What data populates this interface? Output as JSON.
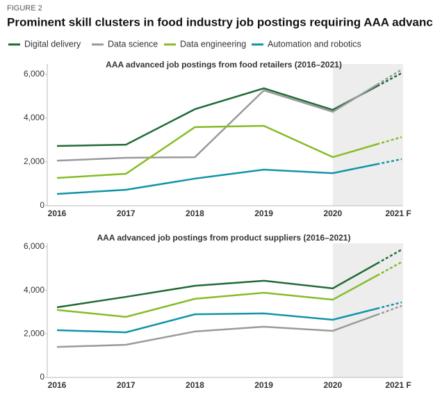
{
  "figure_label": "FIGURE 2",
  "title": "Prominent skill clusters in food industry job postings requiring AAA advanced skills",
  "chart_data": [
    {
      "type": "line",
      "title": "AAA advanced job postings from food retailers (2016–2021)",
      "categories": [
        "2016",
        "2017",
        "2018",
        "2019",
        "2020",
        "2021 F"
      ],
      "series": [
        {
          "name": "Digital delivery",
          "color": "#1e6b34",
          "values": [
            2730,
            2790,
            4410,
            5365,
            4380,
            6060
          ]
        },
        {
          "name": "Data science",
          "color": "#9a9a9a",
          "values": [
            2060,
            2190,
            2220,
            5270,
            4290,
            6220
          ]
        },
        {
          "name": "Data engineering",
          "color": "#86bc25",
          "values": [
            1270,
            1460,
            3590,
            3650,
            2220,
            3140
          ]
        },
        {
          "name": "Automation and robotics",
          "color": "#1193a9",
          "values": [
            540,
            730,
            1240,
            1650,
            1490,
            2130
          ]
        }
      ],
      "ylim": [
        0,
        6000
      ],
      "yticks": [
        0,
        {
          "value": 2000,
          "label": "2,000"
        },
        {
          "value": 4000,
          "label": "4,000"
        },
        {
          "value": 6000,
          "label": "6,000"
        }
      ]
    },
    {
      "type": "line",
      "title": "AAA advanced job postings from product suppliers (2016–2021)",
      "categories": [
        "2016",
        "2017",
        "2018",
        "2019",
        "2020",
        "2021 F"
      ],
      "series": [
        {
          "name": "Digital delivery",
          "color": "#1e6b34",
          "values": [
            3220,
            3700,
            4210,
            4440,
            4090,
            5870
          ]
        },
        {
          "name": "Data science",
          "color": "#9a9a9a",
          "values": [
            1400,
            1500,
            2110,
            2330,
            2140,
            3290
          ]
        },
        {
          "name": "Data engineering",
          "color": "#86bc25",
          "values": [
            3100,
            2780,
            3610,
            3890,
            3570,
            5300
          ]
        },
        {
          "name": "Automation and robotics",
          "color": "#1193a9",
          "values": [
            2170,
            2070,
            2900,
            2940,
            2650,
            3450
          ]
        }
      ],
      "ylim": [
        0,
        6000
      ],
      "yticks": [
        0,
        {
          "value": 2000,
          "label": "2,000"
        },
        {
          "value": 4000,
          "label": "4,000"
        },
        {
          "value": 6000,
          "label": "6,000"
        }
      ]
    }
  ]
}
